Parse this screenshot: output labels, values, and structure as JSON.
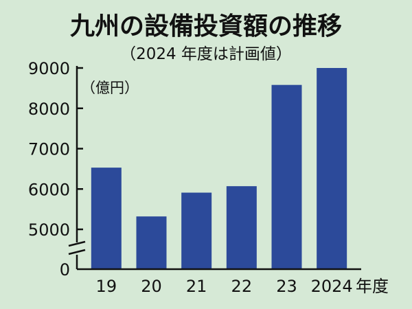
{
  "chart_data": {
    "type": "bar",
    "title": "九州の設備投資額の推移",
    "subtitle": "（2024 年度は計画値）",
    "unit_label": "（億円）",
    "xlabel": "年度",
    "categories": [
      "19",
      "20",
      "21",
      "22",
      "23",
      "2024"
    ],
    "values": [
      6530,
      5320,
      5910,
      6070,
      8580,
      9000
    ],
    "ylim": [
      5000,
      9000
    ],
    "y_ticks": [
      "9000",
      "8000",
      "7000",
      "6000",
      "5000",
      "0"
    ],
    "axis_break": true,
    "grid": false,
    "bar_color": "#2c4a9a",
    "background_color": "#d6e9d6"
  }
}
